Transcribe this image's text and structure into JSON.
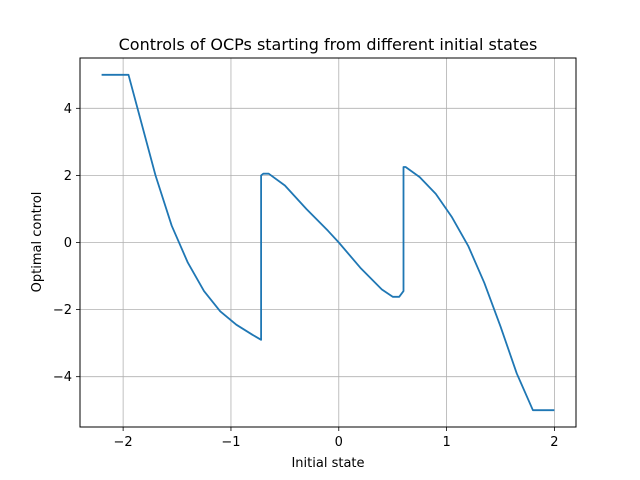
{
  "chart_data": {
    "type": "line",
    "title": "Controls of OCPs starting from different initial states",
    "xlabel": "Initial state",
    "ylabel": "Optimal control",
    "xlim": [
      -2.4,
      2.2
    ],
    "ylim": [
      -5.5,
      5.5
    ],
    "grid": true,
    "xticks": [
      -2,
      -1,
      0,
      1,
      2
    ],
    "xtick_labels": [
      "−2",
      "−1",
      "0",
      "1",
      "2"
    ],
    "yticks": [
      -4,
      -2,
      0,
      2,
      4
    ],
    "ytick_labels": [
      "−4",
      "−2",
      "0",
      "2",
      "4"
    ],
    "line_color": "#1f77b4",
    "series": [
      {
        "x": [
          -2.2,
          -1.95,
          -1.85,
          -1.7,
          -1.55,
          -1.4,
          -1.25,
          -1.1,
          -0.95,
          -0.8,
          -0.72,
          -0.72,
          -0.7,
          -0.65,
          -0.5,
          -0.3,
          -0.1,
          0.0,
          0.2,
          0.4,
          0.5,
          0.56,
          0.6,
          0.6,
          0.62,
          0.75,
          0.9,
          1.05,
          1.2,
          1.35,
          1.5,
          1.65,
          1.8,
          2.0
        ],
        "y": [
          5.0,
          5.0,
          3.8,
          2.0,
          0.5,
          -0.6,
          -1.45,
          -2.05,
          -2.45,
          -2.75,
          -2.9,
          2.0,
          2.05,
          2.05,
          1.7,
          1.0,
          0.35,
          0.0,
          -0.75,
          -1.4,
          -1.62,
          -1.62,
          -1.45,
          2.25,
          2.25,
          1.95,
          1.45,
          0.75,
          -0.1,
          -1.2,
          -2.5,
          -3.9,
          -5.0,
          -5.0
        ]
      }
    ]
  }
}
